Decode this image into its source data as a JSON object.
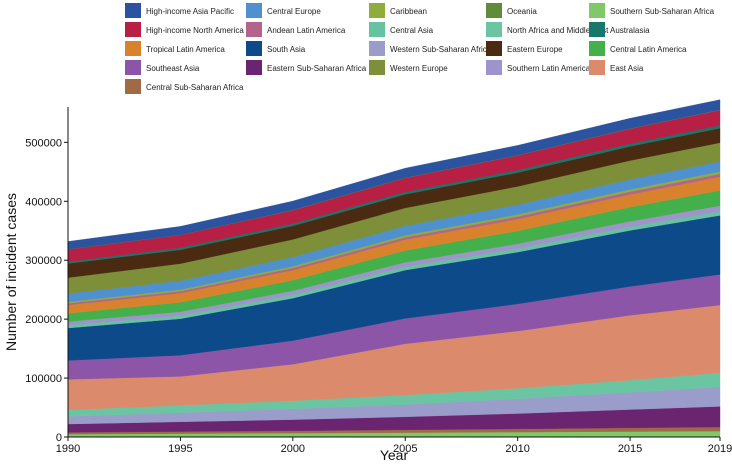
{
  "chart_data": {
    "type": "area",
    "stacked": true,
    "xlabel": "Year",
    "ylabel": "Number of incident cases",
    "xlim": [
      1990,
      2019
    ],
    "ylim": [
      0,
      560000
    ],
    "xticks": [
      1990,
      1995,
      2000,
      2005,
      2010,
      2015,
      2019
    ],
    "yticks": [
      0,
      100000,
      200000,
      300000,
      400000,
      500000
    ],
    "ytick_labels": [
      "0",
      "100000",
      "200000",
      "300000",
      "400000",
      "500000"
    ],
    "legend_position": "top",
    "x": [
      1990,
      1995,
      2000,
      2005,
      2010,
      2015,
      2019
    ],
    "series": [
      {
        "name": "Southern Sub-Saharan Africa",
        "color": "#7fc96a",
        "values": [
          5000,
          5800,
          6600,
          7500,
          8400,
          9300,
          10000
        ]
      },
      {
        "name": "Central Sub-Saharan Africa",
        "color": "#a06a44",
        "values": [
          3000,
          3500,
          4000,
          4700,
          5400,
          6300,
          7000
        ]
      },
      {
        "name": "Eastern Sub-Saharan Africa",
        "color": "#6b2470",
        "values": [
          14000,
          16500,
          19000,
          22000,
          26000,
          31000,
          35000
        ]
      },
      {
        "name": "Western Sub-Saharan Africa",
        "color": "#9a9cc9",
        "values": [
          13000,
          15500,
          18000,
          21000,
          25000,
          29000,
          33000
        ]
      },
      {
        "name": "North Africa and Middle East",
        "color": "#6cc5a2",
        "values": [
          11000,
          12500,
          14000,
          16000,
          18000,
          21000,
          24000
        ]
      },
      {
        "name": "East Asia",
        "color": "#db8a6c",
        "values": [
          52000,
          49000,
          62000,
          87000,
          97000,
          110000,
          115000
        ]
      },
      {
        "name": "Southeast Asia",
        "color": "#8c55a8",
        "values": [
          32000,
          36000,
          40000,
          43000,
          46000,
          49000,
          52000
        ]
      },
      {
        "name": "South Asia",
        "color": "#0d4a8a",
        "values": [
          55000,
          62000,
          72000,
          82000,
          88000,
          95000,
          100000
        ]
      },
      {
        "name": "Central Asia",
        "color": "#66c2a0",
        "values": [
          5000,
          5300,
          5500,
          5800,
          6000,
          6500,
          7000
        ]
      },
      {
        "name": "Southern Latin America",
        "color": "#9f93cc",
        "values": [
          6000,
          6500,
          7000,
          7500,
          8000,
          9000,
          9500
        ]
      },
      {
        "name": "Central Latin America",
        "color": "#44b04c",
        "values": [
          14000,
          16000,
          18000,
          20000,
          22000,
          24000,
          26000
        ]
      },
      {
        "name": "Tropical Latin America",
        "color": "#d9822e",
        "values": [
          14000,
          15500,
          17000,
          18500,
          20000,
          21500,
          23000
        ]
      },
      {
        "name": "Andean Latin America",
        "color": "#b4648a",
        "values": [
          3000,
          3300,
          3700,
          4000,
          4400,
          4800,
          5000
        ]
      },
      {
        "name": "Caribbean",
        "color": "#8fad3c",
        "values": [
          2500,
          2800,
          3000,
          3300,
          3500,
          3800,
          4000
        ]
      },
      {
        "name": "Central Europe",
        "color": "#4f90cf",
        "values": [
          14000,
          15000,
          15500,
          16000,
          16500,
          17000,
          17000
        ]
      },
      {
        "name": "Western Europe",
        "color": "#7d8f39",
        "values": [
          27000,
          29000,
          30000,
          30500,
          31000,
          32000,
          32000
        ]
      },
      {
        "name": "Eastern Europe",
        "color": "#4b2a12",
        "values": [
          24000,
          23500,
          23000,
          23000,
          23500,
          24000,
          24500
        ]
      },
      {
        "name": "Australasia",
        "color": "#16786a",
        "values": [
          3000,
          3300,
          3600,
          3900,
          4200,
          4500,
          4800
        ]
      },
      {
        "name": "High-income North America",
        "color": "#b81f45",
        "values": [
          21000,
          22000,
          23000,
          24000,
          25000,
          25500,
          26000
        ]
      },
      {
        "name": "Oceania",
        "color": "#5e8c3a",
        "values": [
          300,
          350,
          400,
          450,
          500,
          550,
          600
        ]
      },
      {
        "name": "High-income Asia Pacific",
        "color": "#2b53a0",
        "values": [
          13000,
          14000,
          15000,
          16000,
          16500,
          17000,
          17000
        ]
      }
    ],
    "legend_entries": [
      {
        "name": "High-income Asia Pacific",
        "color": "#2b53a0"
      },
      {
        "name": "Central Europe",
        "color": "#4f90cf"
      },
      {
        "name": "Caribbean",
        "color": "#8fad3c"
      },
      {
        "name": "Oceania",
        "color": "#5e8c3a"
      },
      {
        "name": "Southern Sub-Saharan Africa",
        "color": "#7fc96a"
      },
      {
        "name": "High-income North America",
        "color": "#b81f45"
      },
      {
        "name": "Andean Latin America",
        "color": "#b4648a"
      },
      {
        "name": "Central Asia",
        "color": "#66c2a0"
      },
      {
        "name": "North Africa and Middle East",
        "color": "#6cc5a2"
      },
      {
        "name": "Australasia",
        "color": "#16786a"
      },
      {
        "name": "Tropical Latin America",
        "color": "#d9822e"
      },
      {
        "name": "South Asia",
        "color": "#0d4a8a"
      },
      {
        "name": "Western Sub-Saharan Africa",
        "color": "#9a9cc9"
      },
      {
        "name": "Eastern Europe",
        "color": "#4b2a12"
      },
      {
        "name": "Central Latin America",
        "color": "#44b04c"
      },
      {
        "name": "Southeast Asia",
        "color": "#8c55a8"
      },
      {
        "name": "Eastern Sub-Saharan Africa",
        "color": "#6b2470"
      },
      {
        "name": "Western Europe",
        "color": "#7d8f39"
      },
      {
        "name": "Southern Latin America",
        "color": "#9f93cc"
      },
      {
        "name": "East Asia",
        "color": "#db8a6c"
      },
      {
        "name": "Central Sub-Saharan Africa",
        "color": "#a06a44"
      }
    ]
  }
}
